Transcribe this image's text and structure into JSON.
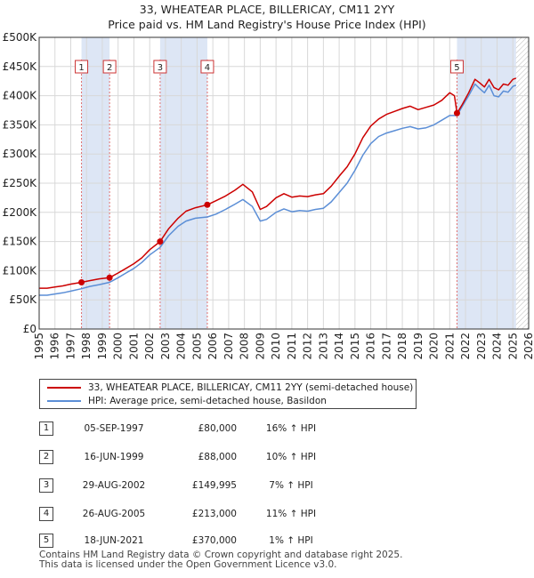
{
  "title": {
    "line1": "33, WHEATEAR PLACE, BILLERICAY, CM11 2YY",
    "line2": "Price paid vs. HM Land Registry's House Price Index (HPI)"
  },
  "colors": {
    "property": "#cc0000",
    "hpi": "#5b8ed6",
    "shade": "#dde6f5",
    "grid": "#d8d8d8",
    "marker_line": "#e07070"
  },
  "legend": {
    "property_label": "33, WHEATEAR PLACE, BILLERICAY, CM11 2YY (semi-detached house)",
    "hpi_label": "HPI: Average price, semi-detached house, Basildon"
  },
  "sales": [
    {
      "num": "1",
      "date": "05-SEP-1997",
      "price": "£80,000",
      "hpi": "16% ↑ HPI"
    },
    {
      "num": "2",
      "date": "16-JUN-1999",
      "price": "£88,000",
      "hpi": "10% ↑ HPI"
    },
    {
      "num": "3",
      "date": "29-AUG-2002",
      "price": "£149,995",
      "hpi": "7% ↑ HPI"
    },
    {
      "num": "4",
      "date": "26-AUG-2005",
      "price": "£213,000",
      "hpi": "11% ↑ HPI"
    },
    {
      "num": "5",
      "date": "18-JUN-2021",
      "price": "£370,000",
      "hpi": "1% ↑ HPI"
    }
  ],
  "footer": {
    "line1": "Contains HM Land Registry data © Crown copyright and database right 2025.",
    "line2": "This data is licensed under the Open Government Licence v3.0."
  },
  "chart_data": {
    "type": "line",
    "title": "33, WHEATEAR PLACE, BILLERICAY, CM11 2YY — Price paid vs. HM Land Registry's House Price Index (HPI)",
    "xlabel": "",
    "ylabel": "",
    "xlim": [
      1995,
      2026
    ],
    "ylim": [
      0,
      500000
    ],
    "y_ticks": [
      {
        "value": 0,
        "label": "£0"
      },
      {
        "value": 50000,
        "label": "£50K"
      },
      {
        "value": 100000,
        "label": "£100K"
      },
      {
        "value": 150000,
        "label": "£150K"
      },
      {
        "value": 200000,
        "label": "£200K"
      },
      {
        "value": 250000,
        "label": "£250K"
      },
      {
        "value": 300000,
        "label": "£300K"
      },
      {
        "value": 350000,
        "label": "£350K"
      },
      {
        "value": 400000,
        "label": "£400K"
      },
      {
        "value": 450000,
        "label": "£450K"
      },
      {
        "value": 500000,
        "label": "£500K"
      }
    ],
    "x_ticks": [
      "1995",
      "1996",
      "1997",
      "1998",
      "1999",
      "2000",
      "2001",
      "2002",
      "2003",
      "2004",
      "2005",
      "2006",
      "2007",
      "2008",
      "2009",
      "2010",
      "2011",
      "2012",
      "2013",
      "2014",
      "2015",
      "2016",
      "2017",
      "2018",
      "2019",
      "2020",
      "2021",
      "2022",
      "2023",
      "2024",
      "2025",
      "2026"
    ],
    "grid": true,
    "shaded_periods": [
      [
        1997.68,
        1999.46
      ],
      [
        2002.66,
        2005.65
      ],
      [
        2021.46,
        2025.2
      ]
    ],
    "data_end": 2025.2,
    "sale_markers": [
      {
        "label": "1",
        "x": 1997.68,
        "y": 80000
      },
      {
        "label": "2",
        "x": 1999.46,
        "y": 88000
      },
      {
        "label": "3",
        "x": 2002.66,
        "y": 149995
      },
      {
        "label": "4",
        "x": 2005.65,
        "y": 213000
      },
      {
        "label": "5",
        "x": 2021.46,
        "y": 370000
      }
    ],
    "series": [
      {
        "name": "33, WHEATEAR PLACE, BILLERICAY, CM11 2YY (semi-detached house)",
        "color": "#cc0000",
        "x": [
          1995.0,
          1995.5,
          1996.0,
          1996.5,
          1997.0,
          1997.68,
          1998.2,
          1998.8,
          1999.46,
          2000.0,
          2000.5,
          2001.0,
          2001.5,
          2002.0,
          2002.66,
          2003.2,
          2003.8,
          2004.3,
          2004.9,
          2005.65,
          2006.2,
          2006.8,
          2007.4,
          2007.9,
          2008.5,
          2009.0,
          2009.4,
          2010.0,
          2010.5,
          2011.0,
          2011.5,
          2012.0,
          2012.5,
          2013.0,
          2013.5,
          2014.0,
          2014.5,
          2015.0,
          2015.5,
          2016.0,
          2016.5,
          2017.0,
          2017.5,
          2018.0,
          2018.5,
          2019.0,
          2019.5,
          2020.0,
          2020.5,
          2021.0,
          2021.3,
          2021.46,
          2021.8,
          2022.2,
          2022.6,
          2022.9,
          2023.2,
          2023.5,
          2023.8,
          2024.1,
          2024.4,
          2024.7,
          2025.0,
          2025.2
        ],
        "y": [
          70000,
          70000,
          72000,
          74000,
          77000,
          80000,
          83000,
          86000,
          88000,
          96000,
          104000,
          112000,
          122000,
          136000,
          149995,
          172000,
          190000,
          202000,
          208000,
          213000,
          220000,
          228000,
          238000,
          248000,
          235000,
          205000,
          210000,
          225000,
          232000,
          226000,
          228000,
          227000,
          230000,
          232000,
          245000,
          262000,
          278000,
          300000,
          328000,
          348000,
          360000,
          368000,
          373000,
          378000,
          382000,
          376000,
          380000,
          384000,
          392000,
          405000,
          400000,
          370000,
          385000,
          405000,
          428000,
          422000,
          415000,
          428000,
          414000,
          410000,
          420000,
          418000,
          428000,
          430000
        ]
      },
      {
        "name": "HPI: Average price, semi-detached house, Basildon",
        "color": "#5b8ed6",
        "x": [
          1995.0,
          1995.5,
          1996.0,
          1996.5,
          1997.0,
          1997.68,
          1998.2,
          1998.8,
          1999.46,
          2000.0,
          2000.5,
          2001.0,
          2001.5,
          2002.0,
          2002.66,
          2003.2,
          2003.8,
          2004.3,
          2004.9,
          2005.65,
          2006.2,
          2006.8,
          2007.4,
          2007.9,
          2008.5,
          2009.0,
          2009.4,
          2010.0,
          2010.5,
          2011.0,
          2011.5,
          2012.0,
          2012.5,
          2013.0,
          2013.5,
          2014.0,
          2014.5,
          2015.0,
          2015.5,
          2016.0,
          2016.5,
          2017.0,
          2017.5,
          2018.0,
          2018.5,
          2019.0,
          2019.5,
          2020.0,
          2020.5,
          2021.0,
          2021.3,
          2021.46,
          2021.8,
          2022.2,
          2022.6,
          2022.9,
          2023.2,
          2023.5,
          2023.8,
          2024.1,
          2024.4,
          2024.7,
          2025.0,
          2025.2
        ],
        "y": [
          58000,
          58000,
          60000,
          62000,
          65000,
          69000,
          73000,
          76000,
          80000,
          88000,
          96000,
          104000,
          114000,
          127000,
          140000,
          160000,
          176000,
          185000,
          190000,
          192000,
          197000,
          205000,
          214000,
          222000,
          210000,
          185000,
          188000,
          200000,
          206000,
          201000,
          203000,
          202000,
          205000,
          207000,
          218000,
          234000,
          250000,
          272000,
          298000,
          318000,
          330000,
          336000,
          340000,
          344000,
          347000,
          343000,
          345000,
          350000,
          358000,
          366000,
          366000,
          366000,
          382000,
          400000,
          420000,
          412000,
          405000,
          418000,
          400000,
          398000,
          408000,
          406000,
          416000,
          418000
        ]
      }
    ]
  }
}
